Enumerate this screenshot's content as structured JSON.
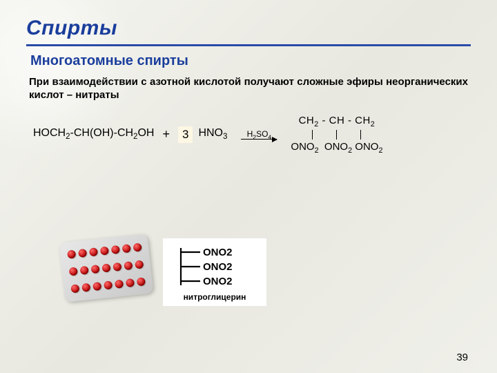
{
  "colors": {
    "title": "#1a3e9c",
    "underline": "#2a4aa8",
    "subtitle": "#1a3e9c",
    "text": "#000000",
    "pill": "#c40000",
    "blister": "#d6d6d6",
    "coef_highlight": "#fdf7e3"
  },
  "title": "Спирты",
  "subtitle": "Многоатомные спирты",
  "body": "При взаимодействии с азотной кислотой получают сложные эфиры неорганических кислот – нитраты",
  "reaction": {
    "reactant1_html": "HOCH<sub>2</sub>-CH(OH)-CH<sub>2</sub>OH",
    "plus": "+",
    "coefficient": "3",
    "reactant2_html": "HNO<sub>3</sub>",
    "catalyst_html": "H<sub>2</sub>SO<sub>4</sub>",
    "product_top_html": "CH<sub>2</sub> - CH - CH<sub>2</sub>",
    "product_bottom_html": "ONO<sub>2</sub>&nbsp;&nbsp;ONO<sub>2</sub>&nbsp;ONO<sub>2</sub>"
  },
  "structure": {
    "branches": [
      "ONO2",
      "ONO2",
      "ONO2"
    ],
    "label": "нитроглицерин"
  },
  "blister": {
    "rows": 3,
    "cols": 7
  },
  "page_number": "39"
}
